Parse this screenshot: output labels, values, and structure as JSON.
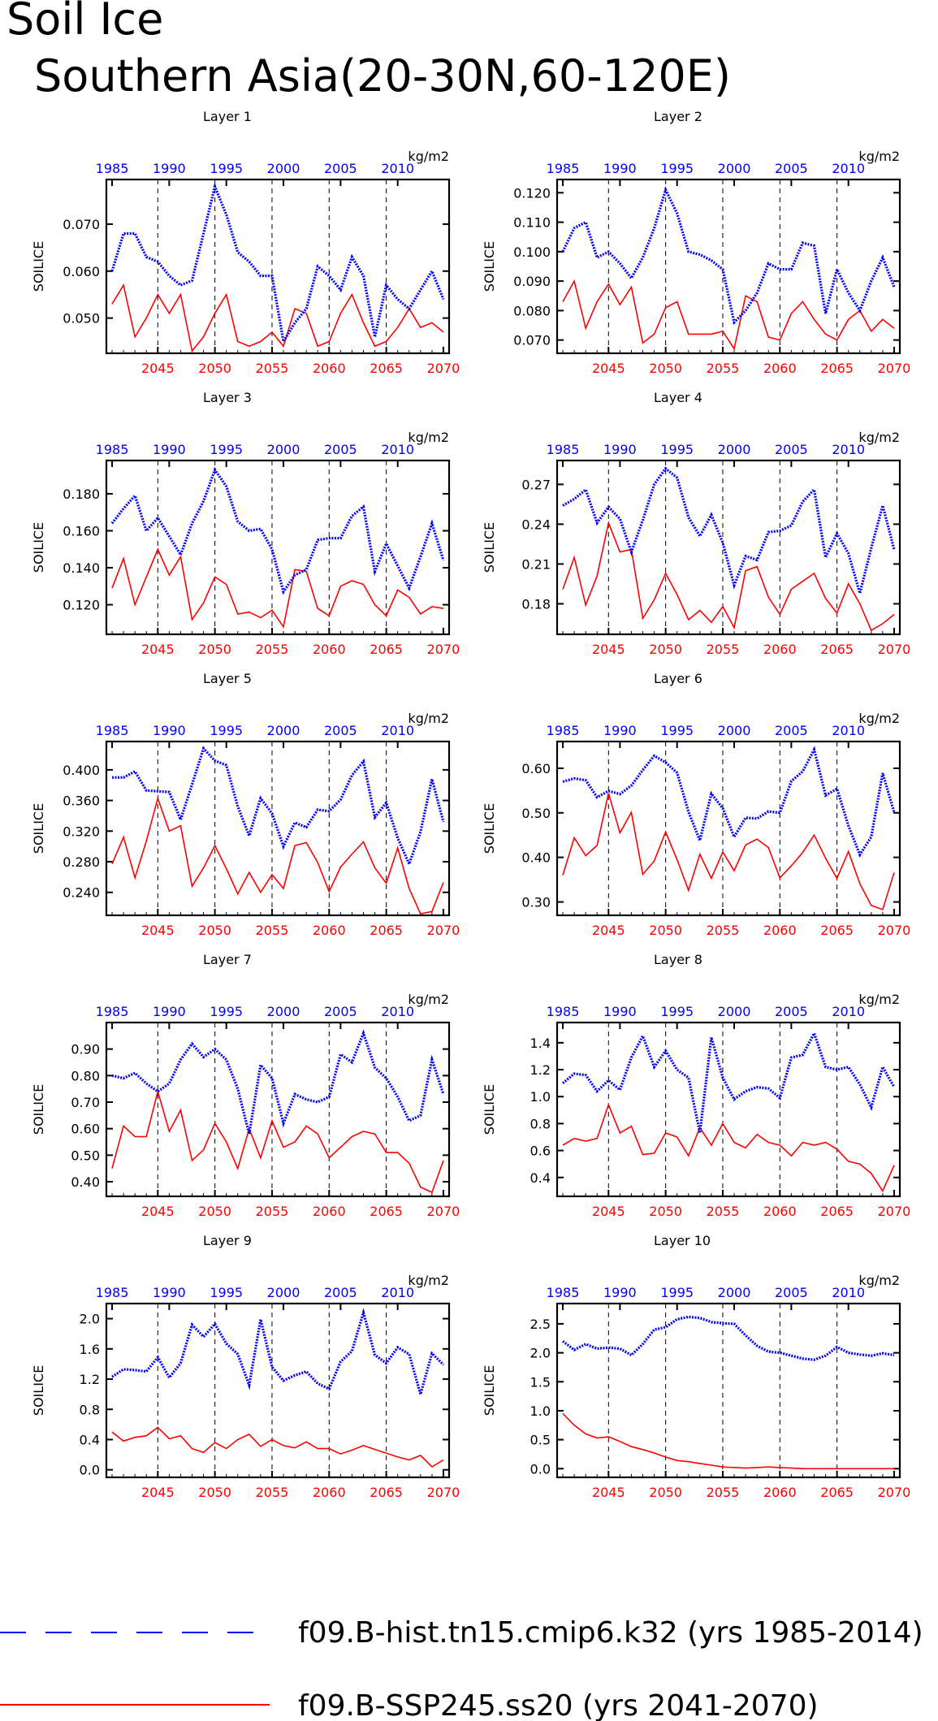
{
  "title": "Soil Ice",
  "subtitle": "Southern Asia(20-30N,60-120E)",
  "colors": {
    "hist": "#0000ff",
    "ssp": "#ff0000",
    "axis": "#000000"
  },
  "legend": {
    "hist_label": "f09.B-hist.tn15.cmip6.k32 (yrs 1985-2014)",
    "ssp_label": "f09.B-SSP245.ss20 (yrs 2041-2070)"
  },
  "chart_data": [
    {
      "type": "line",
      "title": "Layer 1",
      "ylabel": "SOILICE",
      "units": "kg/m2",
      "top_axis_ticks": [
        1985,
        1990,
        1995,
        2000,
        2005,
        2010
      ],
      "bottom_axis_ticks": [
        2045,
        2050,
        2055,
        2060,
        2065,
        2070
      ],
      "yticks": [
        "0.050",
        "0.060",
        "0.070"
      ],
      "ylim": [
        0.0425,
        0.0795
      ],
      "series": [
        {
          "name": "f09.B-hist.tn15.cmip6.k32 (yrs 1985-2014)",
          "values": [
            0.06,
            0.068,
            0.068,
            0.063,
            0.062,
            0.059,
            0.057,
            0.058,
            0.068,
            0.078,
            0.072,
            0.064,
            0.062,
            0.059,
            0.059,
            0.045,
            0.049,
            0.052,
            0.061,
            0.059,
            0.056,
            0.063,
            0.059,
            0.046,
            0.057,
            0.054,
            0.052,
            0.056,
            0.06,
            0.054
          ]
        },
        {
          "name": "f09.B-SSP245.ss20 (yrs 2041-2070)",
          "values": [
            0.053,
            0.057,
            0.046,
            0.05,
            0.055,
            0.051,
            0.055,
            0.043,
            0.046,
            0.051,
            0.055,
            0.045,
            0.044,
            0.045,
            0.047,
            0.044,
            0.052,
            0.051,
            0.044,
            0.045,
            0.051,
            0.055,
            0.049,
            0.044,
            0.045,
            0.048,
            0.052,
            0.048,
            0.049,
            0.047
          ]
        }
      ]
    },
    {
      "type": "line",
      "title": "Layer 2",
      "ylabel": "SOILICE",
      "units": "kg/m2",
      "top_axis_ticks": [
        1985,
        1990,
        1995,
        2000,
        2005,
        2010
      ],
      "bottom_axis_ticks": [
        2045,
        2050,
        2055,
        2060,
        2065,
        2070
      ],
      "yticks": [
        "0.070",
        "0.080",
        "0.090",
        "0.100",
        "0.110",
        "0.120"
      ],
      "ylim": [
        0.0655,
        0.1245
      ],
      "series": [
        {
          "name": "f09.B-hist.tn15.cmip6.k32 (yrs 1985-2014)",
          "values": [
            0.1,
            0.108,
            0.11,
            0.098,
            0.1,
            0.096,
            0.091,
            0.098,
            0.108,
            0.121,
            0.113,
            0.1,
            0.099,
            0.097,
            0.094,
            0.076,
            0.08,
            0.086,
            0.096,
            0.094,
            0.094,
            0.103,
            0.102,
            0.079,
            0.094,
            0.086,
            0.08,
            0.09,
            0.098,
            0.088
          ]
        },
        {
          "name": "f09.B-SSP245.ss20 (yrs 2041-2070)",
          "values": [
            0.083,
            0.09,
            0.074,
            0.083,
            0.089,
            0.082,
            0.088,
            0.069,
            0.072,
            0.081,
            0.083,
            0.072,
            0.072,
            0.072,
            0.073,
            0.067,
            0.085,
            0.083,
            0.071,
            0.07,
            0.079,
            0.083,
            0.077,
            0.072,
            0.07,
            0.077,
            0.08,
            0.073,
            0.077,
            0.074
          ]
        }
      ]
    },
    {
      "type": "line",
      "title": "Layer 3",
      "ylabel": "SOILICE",
      "units": "kg/m2",
      "top_axis_ticks": [
        1985,
        1990,
        1995,
        2000,
        2005,
        2010
      ],
      "bottom_axis_ticks": [
        2045,
        2050,
        2055,
        2060,
        2065,
        2070
      ],
      "yticks": [
        "0.120",
        "0.140",
        "0.160",
        "0.180"
      ],
      "ylim": [
        0.104,
        0.198
      ],
      "series": [
        {
          "name": "f09.B-hist.tn15.cmip6.k32 (yrs 1985-2014)",
          "values": [
            0.164,
            0.172,
            0.179,
            0.16,
            0.167,
            0.157,
            0.147,
            0.164,
            0.176,
            0.193,
            0.184,
            0.165,
            0.16,
            0.161,
            0.15,
            0.127,
            0.136,
            0.139,
            0.155,
            0.156,
            0.156,
            0.168,
            0.173,
            0.138,
            0.153,
            0.141,
            0.129,
            0.146,
            0.164,
            0.144
          ]
        },
        {
          "name": "f09.B-SSP245.ss20 (yrs 2041-2070)",
          "values": [
            0.129,
            0.145,
            0.12,
            0.135,
            0.15,
            0.136,
            0.146,
            0.112,
            0.121,
            0.135,
            0.131,
            0.115,
            0.116,
            0.113,
            0.117,
            0.108,
            0.139,
            0.138,
            0.118,
            0.114,
            0.13,
            0.133,
            0.131,
            0.12,
            0.114,
            0.128,
            0.124,
            0.115,
            0.119,
            0.118
          ]
        }
      ]
    },
    {
      "type": "line",
      "title": "Layer 4",
      "ylabel": "SOILICE",
      "units": "kg/m2",
      "top_axis_ticks": [
        1985,
        1990,
        1995,
        2000,
        2005,
        2010
      ],
      "bottom_axis_ticks": [
        2045,
        2050,
        2055,
        2060,
        2065,
        2070
      ],
      "yticks": [
        "0.18",
        "0.21",
        "0.24",
        "0.27"
      ],
      "ylim": [
        0.157,
        0.288
      ],
      "series": [
        {
          "name": "f09.B-hist.tn15.cmip6.k32 (yrs 1985-2014)",
          "values": [
            0.254,
            0.259,
            0.266,
            0.241,
            0.253,
            0.244,
            0.219,
            0.243,
            0.27,
            0.282,
            0.275,
            0.245,
            0.231,
            0.247,
            0.226,
            0.194,
            0.216,
            0.213,
            0.234,
            0.235,
            0.239,
            0.257,
            0.266,
            0.215,
            0.233,
            0.218,
            0.188,
            0.222,
            0.254,
            0.221
          ]
        },
        {
          "name": "f09.B-SSP245.ss20 (yrs 2041-2070)",
          "values": [
            0.191,
            0.215,
            0.179,
            0.201,
            0.241,
            0.219,
            0.221,
            0.169,
            0.183,
            0.203,
            0.187,
            0.168,
            0.175,
            0.166,
            0.178,
            0.162,
            0.205,
            0.208,
            0.185,
            0.172,
            0.191,
            0.197,
            0.203,
            0.184,
            0.173,
            0.195,
            0.18,
            0.16,
            0.165,
            0.172
          ]
        }
      ]
    },
    {
      "type": "line",
      "title": "Layer 5",
      "ylabel": "SOILICE",
      "units": "kg/m2",
      "top_axis_ticks": [
        1985,
        1990,
        1995,
        2000,
        2005,
        2010
      ],
      "bottom_axis_ticks": [
        2045,
        2050,
        2055,
        2060,
        2065,
        2070
      ],
      "yticks": [
        "0.240",
        "0.280",
        "0.320",
        "0.360",
        "0.400"
      ],
      "ylim": [
        0.21,
        0.437
      ],
      "series": [
        {
          "name": "f09.B-hist.tn15.cmip6.k32 (yrs 1985-2014)",
          "values": [
            0.39,
            0.39,
            0.398,
            0.373,
            0.372,
            0.371,
            0.335,
            0.381,
            0.428,
            0.412,
            0.406,
            0.352,
            0.314,
            0.363,
            0.343,
            0.3,
            0.331,
            0.325,
            0.348,
            0.346,
            0.361,
            0.393,
            0.411,
            0.338,
            0.357,
            0.311,
            0.277,
            0.319,
            0.388,
            0.332
          ]
        },
        {
          "name": "f09.B-SSP245.ss20 (yrs 2041-2070)",
          "values": [
            0.277,
            0.312,
            0.259,
            0.307,
            0.363,
            0.32,
            0.327,
            0.248,
            0.272,
            0.301,
            0.271,
            0.238,
            0.266,
            0.24,
            0.263,
            0.245,
            0.301,
            0.305,
            0.279,
            0.241,
            0.273,
            0.29,
            0.306,
            0.272,
            0.252,
            0.298,
            0.245,
            0.212,
            0.215,
            0.253
          ]
        }
      ]
    },
    {
      "type": "line",
      "title": "Layer 6",
      "ylabel": "SOILICE",
      "units": "kg/m2",
      "top_axis_ticks": [
        1985,
        1990,
        1995,
        2000,
        2005,
        2010
      ],
      "bottom_axis_ticks": [
        2045,
        2050,
        2055,
        2060,
        2065,
        2070
      ],
      "yticks": [
        "0.30",
        "0.40",
        "0.50",
        "0.60"
      ],
      "ylim": [
        0.27,
        0.66
      ],
      "series": [
        {
          "name": "f09.B-hist.tn15.cmip6.k32 (yrs 1985-2014)",
          "values": [
            0.57,
            0.577,
            0.573,
            0.535,
            0.549,
            0.542,
            0.561,
            0.596,
            0.628,
            0.613,
            0.59,
            0.502,
            0.438,
            0.543,
            0.51,
            0.446,
            0.489,
            0.487,
            0.503,
            0.5,
            0.571,
            0.593,
            0.642,
            0.539,
            0.554,
            0.471,
            0.406,
            0.446,
            0.589,
            0.501
          ]
        },
        {
          "name": "f09.B-SSP245.ss20 (yrs 2041-2070)",
          "values": [
            0.36,
            0.444,
            0.404,
            0.427,
            0.544,
            0.455,
            0.501,
            0.362,
            0.392,
            0.457,
            0.395,
            0.326,
            0.407,
            0.353,
            0.412,
            0.37,
            0.428,
            0.441,
            0.422,
            0.354,
            0.381,
            0.411,
            0.45,
            0.398,
            0.353,
            0.413,
            0.341,
            0.292,
            0.283,
            0.366
          ]
        }
      ]
    },
    {
      "type": "line",
      "title": "Layer 7",
      "ylabel": "SOILICE",
      "units": "kg/m2",
      "top_axis_ticks": [
        1985,
        1990,
        1995,
        2000,
        2005,
        2010
      ],
      "bottom_axis_ticks": [
        2045,
        2050,
        2055,
        2060,
        2065,
        2070
      ],
      "yticks": [
        "0.40",
        "0.50",
        "0.60",
        "0.70",
        "0.80",
        "0.90"
      ],
      "ylim": [
        0.345,
        1.0
      ],
      "series": [
        {
          "name": "f09.B-hist.tn15.cmip6.k32 (yrs 1985-2014)",
          "values": [
            0.8,
            0.79,
            0.81,
            0.77,
            0.74,
            0.77,
            0.86,
            0.92,
            0.87,
            0.9,
            0.86,
            0.75,
            0.58,
            0.84,
            0.79,
            0.62,
            0.73,
            0.71,
            0.7,
            0.72,
            0.88,
            0.85,
            0.96,
            0.83,
            0.79,
            0.72,
            0.63,
            0.65,
            0.86,
            0.73
          ]
        },
        {
          "name": "f09.B-SSP245.ss20 (yrs 2041-2070)",
          "values": [
            0.45,
            0.61,
            0.57,
            0.57,
            0.74,
            0.59,
            0.67,
            0.48,
            0.52,
            0.62,
            0.55,
            0.45,
            0.6,
            0.49,
            0.63,
            0.53,
            0.55,
            0.61,
            0.58,
            0.49,
            0.53,
            0.57,
            0.59,
            0.58,
            0.51,
            0.51,
            0.47,
            0.38,
            0.36,
            0.48
          ]
        }
      ]
    },
    {
      "type": "line",
      "title": "Layer 8",
      "ylabel": "SOILICE",
      "units": "kg/m2",
      "top_axis_ticks": [
        1985,
        1990,
        1995,
        2000,
        2005,
        2010
      ],
      "bottom_axis_ticks": [
        2045,
        2050,
        2055,
        2060,
        2065,
        2070
      ],
      "yticks": [
        "0.4",
        "0.6",
        "0.8",
        "1.0",
        "1.2",
        "1.4"
      ],
      "ylim": [
        0.26,
        1.55
      ],
      "series": [
        {
          "name": "f09.B-hist.tn15.cmip6.k32 (yrs 1985-2014)",
          "values": [
            1.1,
            1.17,
            1.16,
            1.04,
            1.12,
            1.05,
            1.29,
            1.45,
            1.22,
            1.34,
            1.2,
            1.14,
            0.73,
            1.44,
            1.14,
            0.98,
            1.04,
            1.07,
            1.06,
            0.99,
            1.29,
            1.31,
            1.47,
            1.22,
            1.2,
            1.22,
            1.09,
            0.92,
            1.22,
            1.07
          ]
        },
        {
          "name": "f09.B-SSP245.ss20 (yrs 2041-2070)",
          "values": [
            0.64,
            0.69,
            0.67,
            0.69,
            0.94,
            0.73,
            0.78,
            0.57,
            0.58,
            0.73,
            0.7,
            0.56,
            0.77,
            0.64,
            0.8,
            0.66,
            0.62,
            0.72,
            0.66,
            0.64,
            0.56,
            0.66,
            0.64,
            0.66,
            0.61,
            0.52,
            0.5,
            0.43,
            0.3,
            0.49
          ]
        }
      ]
    },
    {
      "type": "line",
      "title": "Layer 9",
      "ylabel": "SOILICE",
      "units": "kg/m2",
      "top_axis_ticks": [
        1985,
        1990,
        1995,
        2000,
        2005,
        2010
      ],
      "bottom_axis_ticks": [
        2045,
        2050,
        2055,
        2060,
        2065,
        2070
      ],
      "yticks": [
        "0.0",
        "0.4",
        "0.8",
        "1.2",
        "1.6",
        "2.0"
      ],
      "ylim": [
        -0.1,
        2.2
      ],
      "series": [
        {
          "name": "f09.B-hist.tn15.cmip6.k32 (yrs 1985-2014)",
          "values": [
            1.23,
            1.33,
            1.32,
            1.3,
            1.49,
            1.22,
            1.41,
            1.92,
            1.76,
            1.93,
            1.67,
            1.53,
            1.12,
            1.99,
            1.36,
            1.18,
            1.25,
            1.3,
            1.14,
            1.07,
            1.43,
            1.57,
            2.08,
            1.52,
            1.41,
            1.62,
            1.53,
            1.0,
            1.54,
            1.39
          ]
        },
        {
          "name": "f09.B-SSP245.ss20 (yrs 2041-2070)",
          "values": [
            0.5,
            0.38,
            0.43,
            0.45,
            0.56,
            0.41,
            0.45,
            0.28,
            0.23,
            0.36,
            0.28,
            0.4,
            0.47,
            0.31,
            0.4,
            0.32,
            0.29,
            0.37,
            0.28,
            0.28,
            0.21,
            0.26,
            0.32,
            0.27,
            0.22,
            0.17,
            0.13,
            0.19,
            0.04,
            0.13
          ]
        }
      ]
    },
    {
      "type": "line",
      "title": "Layer 10",
      "ylabel": "SOILICE",
      "units": "kg/m2",
      "top_axis_ticks": [
        1985,
        1990,
        1995,
        2000,
        2005,
        2010
      ],
      "bottom_axis_ticks": [
        2045,
        2050,
        2055,
        2060,
        2065,
        2070
      ],
      "yticks": [
        "0.0",
        "0.5",
        "1.0",
        "1.5",
        "2.0",
        "2.5"
      ],
      "ylim": [
        -0.15,
        2.85
      ],
      "series": [
        {
          "name": "f09.B-hist.tn15.cmip6.k32 (yrs 1985-2014)",
          "values": [
            2.2,
            2.05,
            2.15,
            2.07,
            2.09,
            2.07,
            1.96,
            2.15,
            2.4,
            2.44,
            2.58,
            2.62,
            2.6,
            2.53,
            2.51,
            2.5,
            2.3,
            2.12,
            2.02,
            2.0,
            1.95,
            1.9,
            1.88,
            1.95,
            2.1,
            2.0,
            1.97,
            1.95,
            1.99,
            1.96
          ]
        },
        {
          "name": "f09.B-SSP245.ss20 (yrs 2041-2070)",
          "values": [
            0.95,
            0.75,
            0.6,
            0.53,
            0.55,
            0.47,
            0.38,
            0.33,
            0.27,
            0.2,
            0.14,
            0.12,
            0.09,
            0.06,
            0.03,
            0.02,
            0.01,
            0.02,
            0.03,
            0.02,
            0.01,
            0.0,
            0.0,
            0.0,
            0.0,
            0.0,
            0.0,
            0.0,
            0.0,
            0.0
          ]
        }
      ]
    }
  ]
}
